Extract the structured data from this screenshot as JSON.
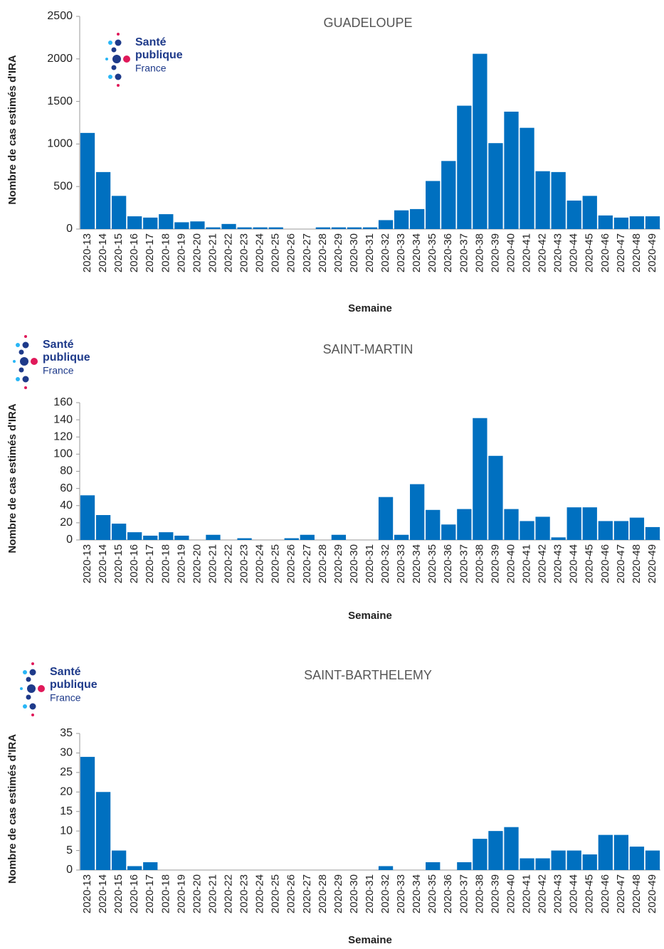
{
  "logo": [
    "Santé",
    "publique",
    "France"
  ],
  "chart_data": [
    {
      "type": "bar",
      "title": "GUADELOUPE",
      "x_label": "Semaine",
      "y_label": "Nombre de cas estimés d'IRA",
      "color": "#0070c0",
      "categories": [
        "2020-13",
        "2020-14",
        "2020-15",
        "2020-16",
        "2020-17",
        "2020-18",
        "2020-19",
        "2020-20",
        "2020-21",
        "2020-22",
        "2020-23",
        "2020-24",
        "2020-25",
        "2020-26",
        "2020-27",
        "2020-28",
        "2020-29",
        "2020-30",
        "2020-31",
        "2020-32",
        "2020-33",
        "2020-34",
        "2020-35",
        "2020-36",
        "2020-37",
        "2020-38",
        "2020-39",
        "2020-40",
        "2020-41",
        "2020-42",
        "2020-43",
        "2020-44",
        "2020-45",
        "2020-46",
        "2020-47",
        "2020-48",
        "2020-49"
      ],
      "values": [
        1130,
        670,
        390,
        150,
        135,
        175,
        80,
        90,
        20,
        60,
        20,
        20,
        20,
        0,
        0,
        20,
        20,
        20,
        20,
        105,
        220,
        235,
        565,
        800,
        1450,
        2060,
        1010,
        1380,
        1190,
        680,
        670,
        335,
        390,
        160,
        135,
        150,
        150
      ],
      "ylim": [
        0,
        2500
      ],
      "yticks": [
        0,
        500,
        1000,
        1500,
        2000,
        2500
      ]
    },
    {
      "type": "bar",
      "title": "SAINT-MARTIN",
      "x_label": "Semaine",
      "y_label": "Nombre de cas estimés d'IRA",
      "color": "#0070c0",
      "categories": [
        "2020-13",
        "2020-14",
        "2020-15",
        "2020-16",
        "2020-17",
        "2020-18",
        "2020-19",
        "2020-20",
        "2020-21",
        "2020-22",
        "2020-23",
        "2020-24",
        "2020-25",
        "2020-26",
        "2020-27",
        "2020-28",
        "2020-29",
        "2020-30",
        "2020-31",
        "2020-32",
        "2020-33",
        "2020-34",
        "2020-35",
        "2020-36",
        "2020-37",
        "2020-38",
        "2020-39",
        "2020-40",
        "2020-41",
        "2020-42",
        "2020-43",
        "2020-44",
        "2020-45",
        "2020-46",
        "2020-47",
        "2020-48",
        "2020-49"
      ],
      "values": [
        52,
        29,
        19,
        9,
        5,
        9,
        5,
        0,
        6,
        0,
        2,
        0,
        0,
        2,
        6,
        0,
        6,
        0,
        0,
        50,
        6,
        65,
        35,
        18,
        36,
        142,
        98,
        36,
        22,
        27,
        3,
        38,
        38,
        22,
        22,
        26,
        15
      ],
      "ylim": [
        0,
        160
      ],
      "yticks": [
        0,
        20,
        40,
        60,
        80,
        100,
        120,
        140,
        160
      ]
    },
    {
      "type": "bar",
      "title": "SAINT-BARTHELEMY",
      "x_label": "Semaine",
      "y_label": "Nombre de cas estimés d'IRA",
      "color": "#0070c0",
      "categories": [
        "2020-13",
        "2020-14",
        "2020-15",
        "2020-16",
        "2020-17",
        "2020-18",
        "2020-19",
        "2020-20",
        "2020-21",
        "2020-22",
        "2020-23",
        "2020-24",
        "2020-25",
        "2020-26",
        "2020-27",
        "2020-28",
        "2020-29",
        "2020-30",
        "2020-31",
        "2020-32",
        "2020-33",
        "2020-34",
        "2020-35",
        "2020-36",
        "2020-37",
        "2020-38",
        "2020-39",
        "2020-40",
        "2020-41",
        "2020-42",
        "2020-43",
        "2020-44",
        "2020-45",
        "2020-46",
        "2020-47",
        "2020-48",
        "2020-49"
      ],
      "values": [
        29,
        20,
        5,
        1,
        2,
        0,
        0,
        0,
        0,
        0,
        0,
        0,
        0,
        0,
        0,
        0,
        0,
        0,
        0,
        1,
        0,
        0,
        2,
        0,
        2,
        8,
        10,
        11,
        3,
        3,
        5,
        5,
        4,
        9,
        9,
        6,
        5
      ],
      "ylim": [
        0,
        35
      ],
      "yticks": [
        0,
        5,
        10,
        15,
        20,
        25,
        30,
        35
      ]
    }
  ]
}
